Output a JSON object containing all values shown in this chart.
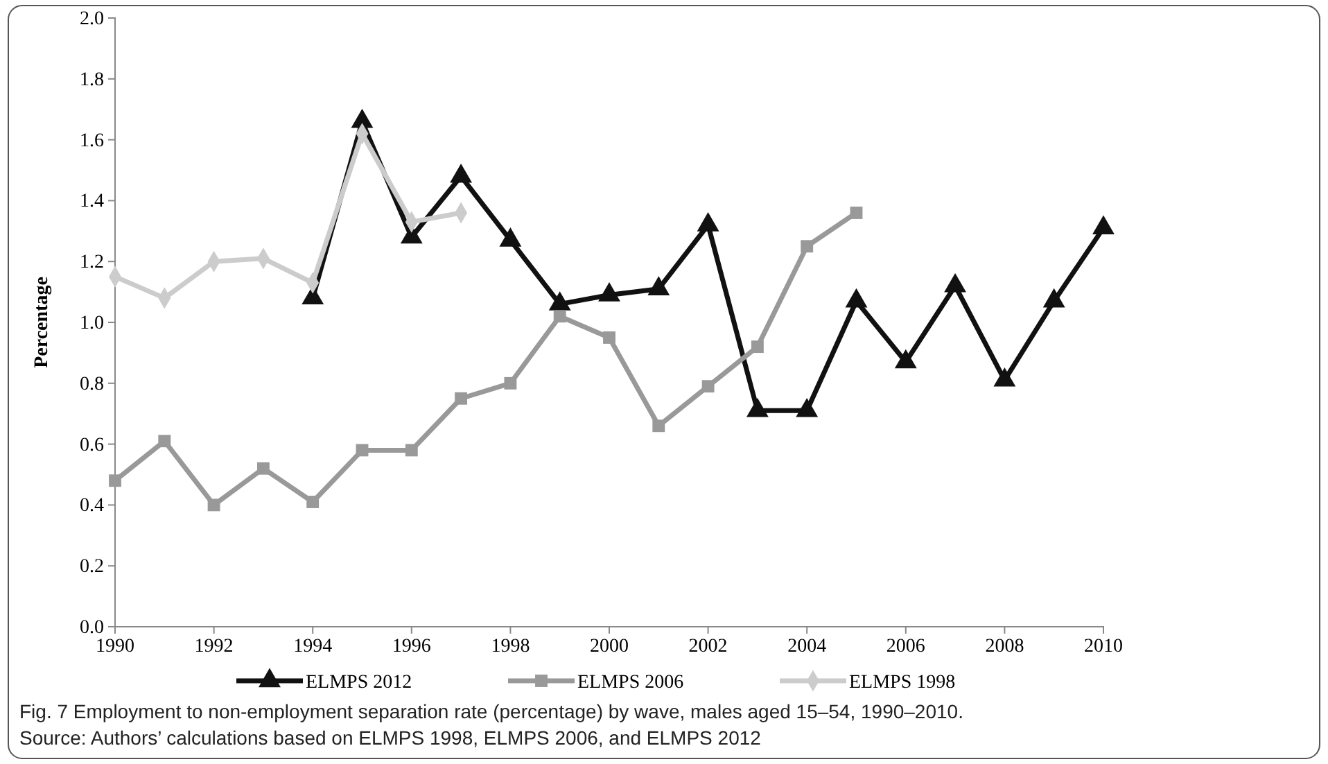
{
  "chart_data": {
    "type": "line",
    "ylabel": "Percentage",
    "x": [
      1990,
      1991,
      1992,
      1993,
      1994,
      1995,
      1996,
      1997,
      1998,
      1999,
      2000,
      2001,
      2002,
      2003,
      2004,
      2005,
      2006,
      2007,
      2008,
      2009,
      2010
    ],
    "xlim": [
      1990,
      2010
    ],
    "xticks": [
      1990,
      1992,
      1994,
      1996,
      1998,
      2000,
      2002,
      2004,
      2006,
      2008,
      2010
    ],
    "ylim": [
      0,
      2
    ],
    "yticks": [
      {
        "value": 0,
        "label": "0.0"
      },
      {
        "value": 0.2,
        "label": "0.2"
      },
      {
        "value": 0.4,
        "label": "0.4"
      },
      {
        "value": 0.6,
        "label": "0.6"
      },
      {
        "value": 0.8,
        "label": "0.8"
      },
      {
        "value": 1,
        "label": "1.0"
      },
      {
        "value": 1.2,
        "label": "1.2"
      },
      {
        "value": 1.4,
        "label": "1.4"
      },
      {
        "value": 1.6,
        "label": "1.6"
      },
      {
        "value": 1.8,
        "label": "1.8"
      },
      {
        "value": 2,
        "label": "2.0"
      }
    ],
    "grid": false,
    "legend": "bottom",
    "line_style": "solid",
    "series": [
      {
        "name": "ELMPS 2012",
        "color": "#111111",
        "marker": "triangle",
        "values": [
          null,
          null,
          null,
          null,
          1.08,
          1.66,
          1.28,
          1.48,
          1.27,
          1.06,
          1.09,
          1.11,
          1.32,
          0.71,
          0.71,
          1.07,
          0.87,
          1.12,
          0.81,
          1.07,
          1.31
        ]
      },
      {
        "name": "ELMPS 2006",
        "color": "#999999",
        "marker": "square",
        "values": [
          0.48,
          0.61,
          0.4,
          0.52,
          0.41,
          0.58,
          0.58,
          0.75,
          0.8,
          1.02,
          0.95,
          0.66,
          0.79,
          0.92,
          1.25,
          1.36,
          null,
          null,
          null,
          null,
          null
        ]
      },
      {
        "name": "ELMPS 1998",
        "color": "#cccccc",
        "marker": "diamond",
        "values": [
          1.15,
          1.08,
          1.2,
          1.21,
          1.13,
          1.62,
          1.33,
          1.36,
          null,
          null,
          null,
          null,
          null,
          null,
          null,
          null,
          null,
          null,
          null,
          null,
          null
        ]
      }
    ],
    "annotations": [
      "Fig. 7 Employment to non-employment separation rate (percentage) by wave, males aged 15–54, 1990–2010.",
      "Source: Authors’ calculations based on ELMPS 1998, ELMPS 2006, and ELMPS 2012"
    ]
  }
}
